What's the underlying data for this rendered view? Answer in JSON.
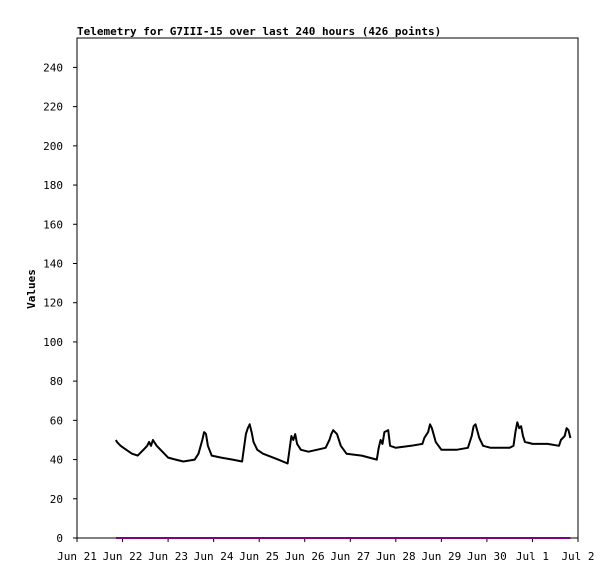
{
  "chart_data": {
    "type": "line",
    "title": "Telemetry for G7III-15 over last 240 hours (426 points)",
    "ylabel": "Values",
    "xlabel": "",
    "ylim": [
      0,
      255
    ],
    "yticks": [
      0,
      20,
      40,
      60,
      80,
      100,
      120,
      140,
      160,
      180,
      200,
      220,
      240
    ],
    "xlim": [
      "2024-06-21",
      "2024-07-02"
    ],
    "xticks": [
      {
        "date": "2024-06-21",
        "label": "Jun 21"
      },
      {
        "date": "2024-06-22",
        "label": "Jun 22"
      },
      {
        "date": "2024-06-23",
        "label": "Jun 23"
      },
      {
        "date": "2024-06-24",
        "label": "Jun 24"
      },
      {
        "date": "2024-06-25",
        "label": "Jun 25"
      },
      {
        "date": "2024-06-26",
        "label": "Jun 26"
      },
      {
        "date": "2024-06-27",
        "label": "Jun 27"
      },
      {
        "date": "2024-06-28",
        "label": "Jun 28"
      },
      {
        "date": "2024-06-29",
        "label": "Jun 29"
      },
      {
        "date": "2024-06-30",
        "label": "Jun 30"
      },
      {
        "date": "2024-07-01",
        "label": "Jul 1"
      },
      {
        "date": "2024-07-02",
        "label": "Jul 2"
      }
    ],
    "grid": false,
    "legend": "none",
    "series": [
      {
        "color": "#000000",
        "points": [
          [
            "2024-06-21T20:30",
            50
          ],
          [
            "2024-06-21T21:00",
            49
          ],
          [
            "2024-06-21T23:00",
            47
          ],
          [
            "2024-06-22T02:00",
            45
          ],
          [
            "2024-06-22T05:00",
            43
          ],
          [
            "2024-06-22T08:00",
            42
          ],
          [
            "2024-06-22T11:00",
            45
          ],
          [
            "2024-06-22T13:00",
            47
          ],
          [
            "2024-06-22T14:00",
            49
          ],
          [
            "2024-06-22T15:00",
            47
          ],
          [
            "2024-06-22T16:00",
            50
          ],
          [
            "2024-06-22T18:00",
            47
          ],
          [
            "2024-06-22T21:00",
            44
          ],
          [
            "2024-06-23T00:00",
            41
          ],
          [
            "2024-06-23T04:00",
            40
          ],
          [
            "2024-06-23T08:00",
            39
          ],
          [
            "2024-06-23T14:00",
            40
          ],
          [
            "2024-06-23T16:00",
            43
          ],
          [
            "2024-06-23T18:00",
            50
          ],
          [
            "2024-06-23T19:00",
            54
          ],
          [
            "2024-06-23T20:00",
            53
          ],
          [
            "2024-06-23T21:00",
            47
          ],
          [
            "2024-06-23T23:00",
            42
          ],
          [
            "2024-06-24T04:00",
            41
          ],
          [
            "2024-06-24T10:00",
            40
          ],
          [
            "2024-06-24T15:00",
            39
          ],
          [
            "2024-06-24T16:00",
            46
          ],
          [
            "2024-06-24T17:00",
            53
          ],
          [
            "2024-06-24T18:00",
            56
          ],
          [
            "2024-06-24T19:00",
            58
          ],
          [
            "2024-06-24T20:00",
            54
          ],
          [
            "2024-06-24T21:00",
            49
          ],
          [
            "2024-06-24T23:00",
            45
          ],
          [
            "2024-06-25T02:00",
            43
          ],
          [
            "2024-06-25T10:00",
            40
          ],
          [
            "2024-06-25T15:00",
            38
          ],
          [
            "2024-06-25T16:00",
            45
          ],
          [
            "2024-06-25T17:00",
            52
          ],
          [
            "2024-06-25T18:00",
            50
          ],
          [
            "2024-06-25T19:00",
            53
          ],
          [
            "2024-06-25T20:00",
            48
          ],
          [
            "2024-06-25T22:00",
            45
          ],
          [
            "2024-06-26T02:00",
            44
          ],
          [
            "2024-06-26T11:00",
            46
          ],
          [
            "2024-06-26T13:00",
            50
          ],
          [
            "2024-06-26T14:00",
            53
          ],
          [
            "2024-06-26T15:00",
            55
          ],
          [
            "2024-06-26T17:00",
            53
          ],
          [
            "2024-06-26T19:00",
            47
          ],
          [
            "2024-06-26T22:00",
            43
          ],
          [
            "2024-06-27T06:00",
            42
          ],
          [
            "2024-06-27T14:00",
            40
          ],
          [
            "2024-06-27T15:00",
            46
          ],
          [
            "2024-06-27T16:00",
            50
          ],
          [
            "2024-06-27T17:00",
            48
          ],
          [
            "2024-06-27T18:00",
            54
          ],
          [
            "2024-06-27T20:00",
            55
          ],
          [
            "2024-06-27T21:00",
            47
          ],
          [
            "2024-06-28T00:00",
            46
          ],
          [
            "2024-06-28T08:00",
            47
          ],
          [
            "2024-06-28T14:00",
            48
          ],
          [
            "2024-06-28T15:00",
            51
          ],
          [
            "2024-06-28T17:00",
            54
          ],
          [
            "2024-06-28T18:00",
            58
          ],
          [
            "2024-06-28T19:00",
            56
          ],
          [
            "2024-06-28T21:00",
            49
          ],
          [
            "2024-06-29T00:00",
            45
          ],
          [
            "2024-06-29T08:00",
            45
          ],
          [
            "2024-06-29T14:00",
            46
          ],
          [
            "2024-06-29T16:00",
            52
          ],
          [
            "2024-06-29T17:00",
            57
          ],
          [
            "2024-06-29T18:00",
            58
          ],
          [
            "2024-06-29T20:00",
            51
          ],
          [
            "2024-06-29T22:00",
            47
          ],
          [
            "2024-06-30T02:00",
            46
          ],
          [
            "2024-06-30T12:00",
            46
          ],
          [
            "2024-06-30T14:00",
            47
          ],
          [
            "2024-06-30T15:00",
            54
          ],
          [
            "2024-06-30T16:00",
            59
          ],
          [
            "2024-06-30T17:00",
            56
          ],
          [
            "2024-06-30T18:00",
            57
          ],
          [
            "2024-06-30T19:00",
            52
          ],
          [
            "2024-06-30T20:00",
            49
          ],
          [
            "2024-07-01T00:00",
            48
          ],
          [
            "2024-07-01T08:00",
            48
          ],
          [
            "2024-07-01T14:00",
            47
          ],
          [
            "2024-07-01T15:00",
            50
          ],
          [
            "2024-07-01T17:00",
            52
          ],
          [
            "2024-07-01T18:00",
            56
          ],
          [
            "2024-07-01T19:00",
            55
          ],
          [
            "2024-07-01T20:00",
            51
          ]
        ]
      },
      {
        "color": "#800080",
        "points": [
          [
            "2024-06-21T20:30",
            0
          ],
          [
            "2024-07-01T20:00",
            0
          ]
        ]
      }
    ]
  }
}
